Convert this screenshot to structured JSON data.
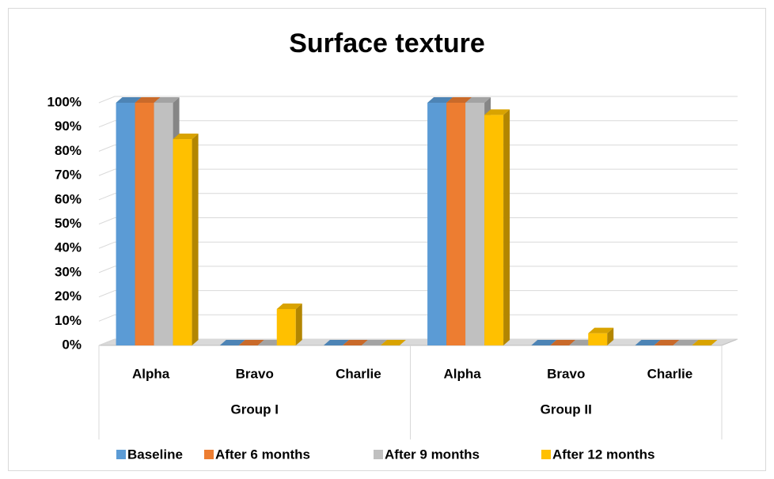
{
  "chart_data": {
    "type": "bar3d",
    "title": "Surface texture",
    "categories": [
      "Alpha",
      "Bravo",
      "Charlie",
      "Alpha",
      "Bravo",
      "Charlie"
    ],
    "groups": [
      "Group I",
      "Group II"
    ],
    "series": [
      {
        "name": "Baseline",
        "color": "#5b9bd5",
        "values": [
          100,
          0,
          0,
          100,
          0,
          0
        ]
      },
      {
        "name": "After 6 months",
        "color": "#ed7d31",
        "values": [
          100,
          0,
          0,
          100,
          0,
          0
        ]
      },
      {
        "name": "After 9 months",
        "color": "#c0c0c0",
        "values": [
          100,
          0,
          0,
          100,
          0,
          0
        ]
      },
      {
        "name": "After 12 months",
        "color": "#ffc000",
        "values": [
          85,
          15,
          0,
          95,
          5,
          0
        ]
      }
    ],
    "ylim": [
      0,
      100
    ],
    "yticks": [
      {
        "value": 0,
        "label": "0%"
      },
      {
        "value": 10,
        "label": "10%"
      },
      {
        "value": 20,
        "label": "20%"
      },
      {
        "value": 30,
        "label": "30%"
      },
      {
        "value": 40,
        "label": "40%"
      },
      {
        "value": 50,
        "label": "50%"
      },
      {
        "value": 60,
        "label": "60%"
      },
      {
        "value": 70,
        "label": "70%"
      },
      {
        "value": 80,
        "label": "80%"
      },
      {
        "value": 90,
        "label": "90%"
      },
      {
        "value": 100,
        "label": "100%"
      }
    ],
    "grid": true,
    "legend": "bottom"
  }
}
